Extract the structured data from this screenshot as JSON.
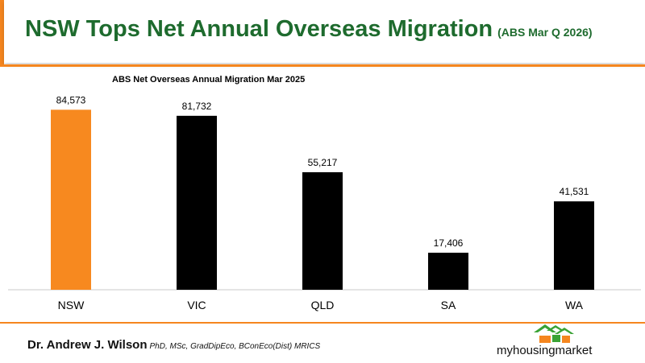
{
  "header": {
    "title": "NSW Tops Net Annual Overseas Migration",
    "subtitle": "(ABS Mar Q 2026)"
  },
  "chart_data": {
    "type": "bar",
    "title": "ABS Net Overseas Annual Migration Mar 2025",
    "categories": [
      "NSW",
      "VIC",
      "QLD",
      "SA",
      "WA"
    ],
    "values": [
      84573,
      81732,
      55217,
      17406,
      41531
    ],
    "value_labels": [
      "84,573",
      "81,732",
      "55,217",
      "17,406",
      "41,531"
    ],
    "ylim": [
      0,
      90000
    ],
    "grid": false,
    "colors": {
      "highlight": "#f7891f",
      "default": "#000000"
    }
  },
  "footer": {
    "author": "Dr. Andrew J. Wilson",
    "credentials": "PhD, MSc, GradDipEco, BConEco(Dist) MRICS"
  },
  "logo": {
    "text": "myhousingmarket",
    "icon": "house-roofs-icon",
    "colors": {
      "green": "#3aa335",
      "orange": "#f5861f",
      "text": "#111111"
    }
  }
}
